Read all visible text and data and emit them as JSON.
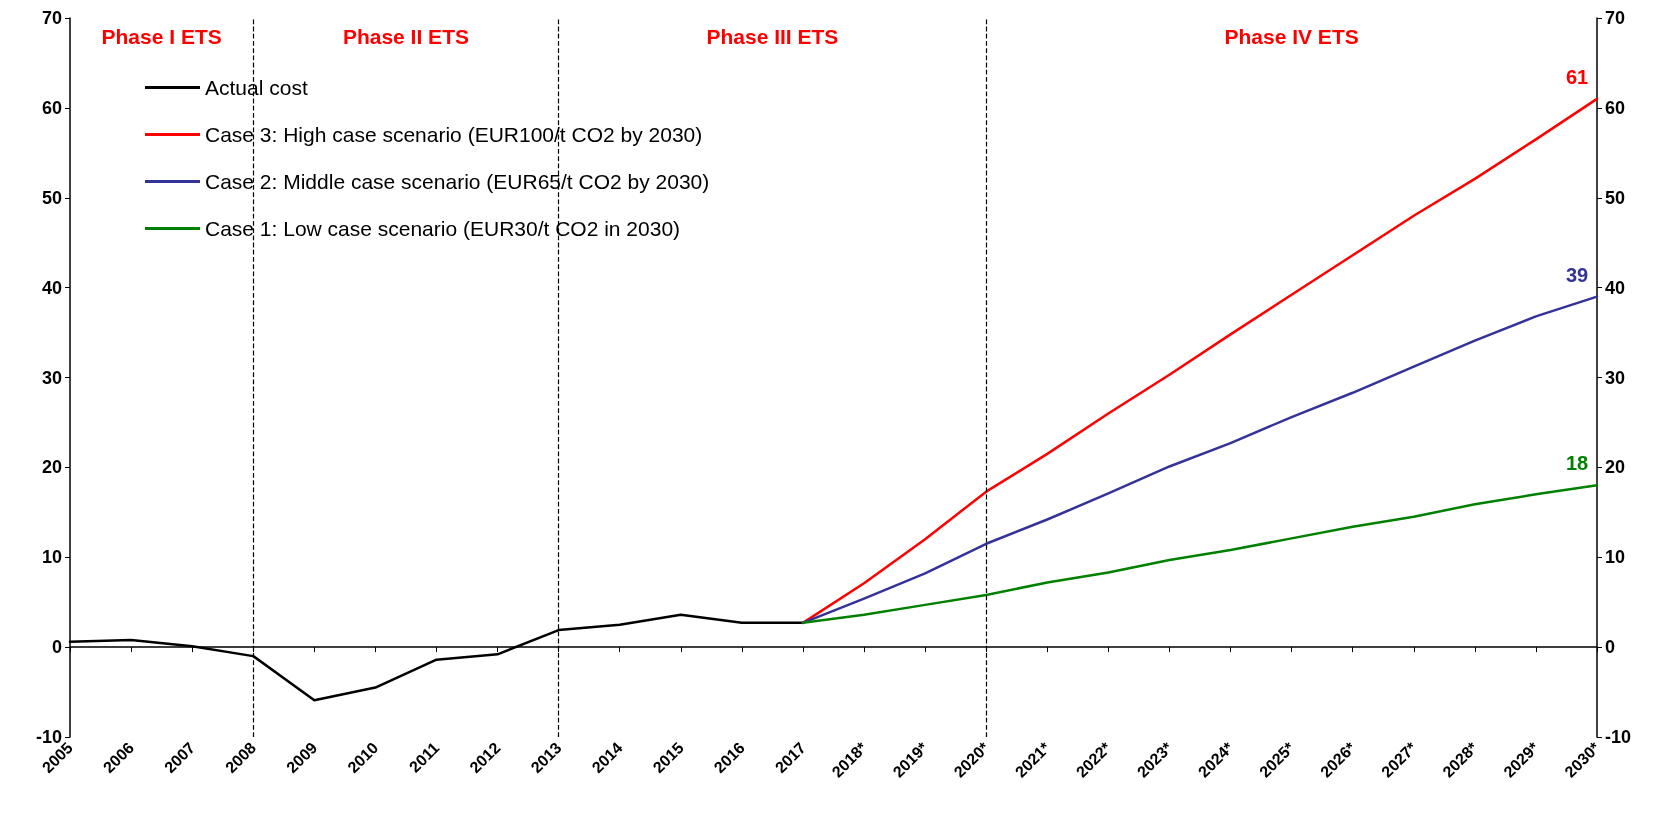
{
  "chart_data": {
    "type": "line",
    "categories": [
      "2005",
      "2006",
      "2007",
      "2008",
      "2009",
      "2010",
      "2011",
      "2012",
      "2013",
      "2014",
      "2015",
      "2016",
      "2017",
      "2018*",
      "2019*",
      "2020*",
      "2021*",
      "2022*",
      "2023*",
      "2024*",
      "2025*",
      "2026*",
      "2027*",
      "2028*",
      "2029*",
      "2030*"
    ],
    "series": [
      {
        "name": "Actual cost",
        "color": "#000000",
        "values": [
          0.6,
          0.8,
          0.1,
          -1.0,
          -5.9,
          -4.5,
          -1.4,
          -0.8,
          1.9,
          2.5,
          3.6,
          2.7,
          2.7,
          null,
          null,
          null,
          null,
          null,
          null,
          null,
          null,
          null,
          null,
          null,
          null,
          null
        ]
      },
      {
        "name": "Case 3: High case scenario (EUR100/t CO2 by 2030)",
        "color": "#ff0000",
        "values": [
          null,
          null,
          null,
          null,
          null,
          null,
          null,
          null,
          null,
          null,
          null,
          null,
          2.7,
          7.1,
          12.0,
          17.3,
          21.5,
          26.0,
          30.3,
          34.8,
          39.2,
          43.6,
          48.0,
          52.1,
          56.5,
          61
        ],
        "value_labels": [
          null,
          null,
          null,
          null,
          null,
          null,
          null,
          null,
          null,
          null,
          null,
          null,
          null,
          null,
          null,
          null,
          null,
          null,
          null,
          null,
          null,
          null,
          null,
          null,
          null,
          "61"
        ]
      },
      {
        "name": "Case 2: Middle case scenario (EUR65/t CO2 by 2030)",
        "color": "#333399",
        "values": [
          null,
          null,
          null,
          null,
          null,
          null,
          null,
          null,
          null,
          null,
          null,
          null,
          2.7,
          5.4,
          8.2,
          11.5,
          14.2,
          17.1,
          20.1,
          22.7,
          25.6,
          28.3,
          31.2,
          34.1,
          36.8,
          39
        ],
        "value_labels": [
          null,
          null,
          null,
          null,
          null,
          null,
          null,
          null,
          null,
          null,
          null,
          null,
          null,
          null,
          null,
          null,
          null,
          null,
          null,
          null,
          null,
          null,
          null,
          null,
          null,
          "39"
        ]
      },
      {
        "name": "Case 1: Low case scenario (EUR30/t CO2 in 2030)",
        "color": "#008000",
        "values": [
          null,
          null,
          null,
          null,
          null,
          null,
          null,
          null,
          null,
          null,
          null,
          null,
          2.7,
          3.6,
          4.7,
          5.8,
          7.2,
          8.3,
          9.7,
          10.8,
          12.1,
          13.4,
          14.5,
          15.9,
          17.0,
          18
        ],
        "value_labels": [
          null,
          null,
          null,
          null,
          null,
          null,
          null,
          null,
          null,
          null,
          null,
          null,
          null,
          null,
          null,
          null,
          null,
          null,
          null,
          null,
          null,
          null,
          null,
          null,
          null,
          "18"
        ]
      }
    ],
    "ylim": [
      -10,
      70
    ],
    "yticks": [
      -10,
      0,
      10,
      20,
      30,
      40,
      50,
      60,
      70
    ],
    "y2lim": [
      -10,
      70
    ],
    "y2ticks": [
      -10,
      0,
      10,
      20,
      30,
      40,
      50,
      60,
      70
    ],
    "ref_lines": [
      {
        "axis": "x",
        "value": "2008",
        "line_style": "dashed",
        "color": "#000000"
      },
      {
        "axis": "x",
        "value": "2013",
        "line_style": "dashed",
        "color": "#000000"
      },
      {
        "axis": "x",
        "value": "2020*",
        "line_style": "dashed",
        "color": "#000000"
      }
    ],
    "annotations": [
      "Phase I ETS",
      "Phase II ETS",
      "Phase III ETS",
      "Phase IV ETS"
    ],
    "legend": "top left",
    "grid": false,
    "marker": "none",
    "line_style": "solid"
  }
}
